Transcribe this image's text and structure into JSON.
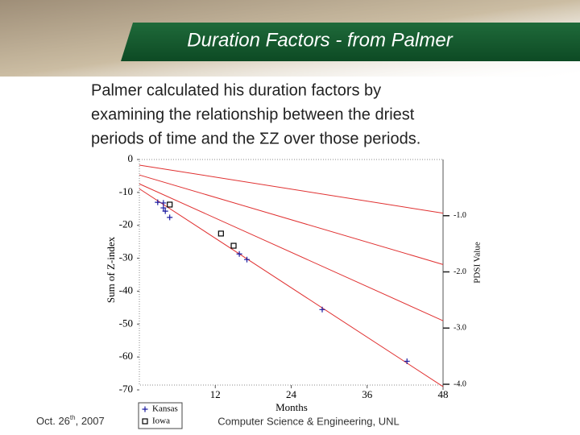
{
  "header": {
    "title": "Duration Factors - from Palmer"
  },
  "body": {
    "lines": [
      "Palmer calculated his duration factors by",
      "examining the relationship between the driest",
      "periods of time and the ΣZ over those periods."
    ]
  },
  "footer": {
    "date": "Oct. 26",
    "date_sup": "th",
    "date_year": ", 2007",
    "center": "Computer Science & Engineering, UNL"
  },
  "chart_data": {
    "type": "scatter",
    "x_label": "Months",
    "y_label": "Sum of Z-index",
    "y2_label": "PDSI Value",
    "xlim": [
      0,
      48
    ],
    "xticks": [
      12,
      24,
      36,
      48
    ],
    "ylim": [
      -70,
      0
    ],
    "yticks": [
      0,
      -10,
      -20,
      -30,
      -40,
      -50,
      -60,
      -70
    ],
    "y2lim": [
      -4.1,
      0
    ],
    "y2ticks": [
      {
        "value": -1,
        "label": "-1.0"
      },
      {
        "value": -2,
        "label": "-2.0"
      },
      {
        "value": -3,
        "label": "-3.0"
      },
      {
        "value": -4,
        "label": "-4.0"
      }
    ],
    "lines": [
      {
        "color": "#e03030",
        "x": [
          0,
          48
        ],
        "values": [
          -1.7,
          -16.3
        ]
      },
      {
        "color": "#e03030",
        "x": [
          0,
          48
        ],
        "values": [
          -4.7,
          -31.9
        ]
      },
      {
        "color": "#e03030",
        "x": [
          0,
          48
        ],
        "values": [
          -7.4,
          -49
        ]
      },
      {
        "color": "#e03030",
        "x": [
          0,
          48
        ],
        "values": [
          -8.9,
          -69
        ]
      }
    ],
    "series": [
      {
        "name": "Kansas",
        "color": "#1a1aa0",
        "marker": "plus",
        "x": [
          2.9,
          3.8,
          3.8,
          4.1,
          4.8,
          15.8,
          17.0,
          28.9,
          42.3
        ],
        "values": [
          -13.0,
          -13.2,
          -14.7,
          -15.7,
          -17.6,
          -28.7,
          -30.4,
          -45.6,
          -61.3
        ]
      },
      {
        "name": "Iowa",
        "color": "#000000",
        "marker": "square",
        "x": [
          4.8,
          12.9,
          14.9
        ],
        "values": [
          -13.7,
          -22.5,
          -26.2
        ]
      }
    ]
  }
}
